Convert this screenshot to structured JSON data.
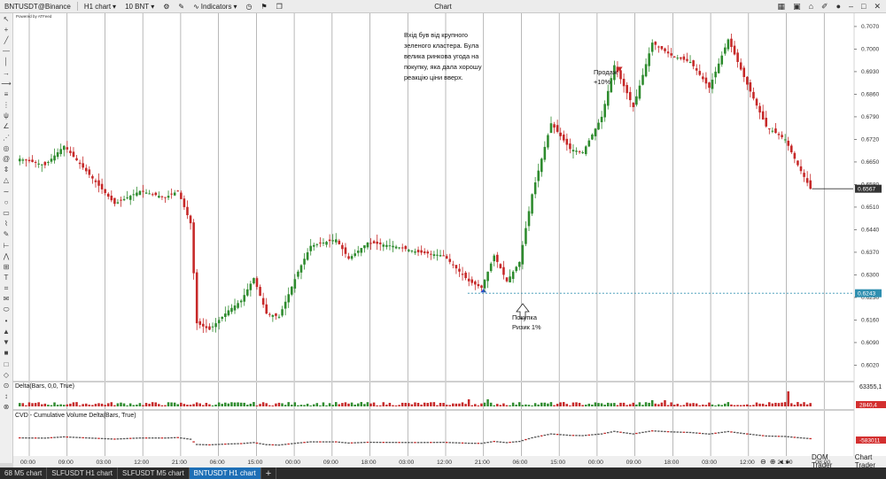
{
  "toolbar": {
    "symbol": "BNTUSDT@Binance",
    "timeframe": "H1 chart",
    "quantity": "10 BNT",
    "indicators": "Indicators",
    "window_title": "Chart",
    "powered": "Powered by ATFeed"
  },
  "annotations": {
    "note_lines": [
      "Вхід був від крупного",
      "зеленого кластера. Була",
      "велика ринкова угода на",
      "покупку, яка дала хорошу",
      "реакцію ціни вверх."
    ],
    "sell_lines": [
      "Продаж",
      "+10%"
    ],
    "buy_lines": [
      "Покупка",
      "Ризик 1%"
    ]
  },
  "panels": {
    "delta_title": "Delta(Bars, 0,0, True)",
    "delta_top_value": "63355,1",
    "delta_badge": "2840,4",
    "cvd_title": "CVD - Cumulative Volume Delta(Bars, True)",
    "cvd_badge": "-583011"
  },
  "bottom": {
    "dom_trader": "DOM Trader",
    "chart_trader": "Chart Trader"
  },
  "tabs": [
    "68 M5 chart",
    "SLFUSDT H1 chart",
    "SLFUSDT M5 chart",
    "BNTUSDT H1 chart"
  ],
  "colors": {
    "up": "#2e8b2e",
    "down": "#c62828",
    "entry_line": "#2f8fb0",
    "price_badge": "#333333",
    "down_badge": "#d32f2f"
  },
  "chart_data": {
    "type": "candlestick",
    "y_ticks": [
      "0.7070",
      "0.7000",
      "0.6930",
      "0.6860",
      "0.6790",
      "0.6720",
      "0.6650",
      "0.6580",
      "0.6510",
      "0.6440",
      "0.6370",
      "0.6300",
      "0.6230",
      "0.6160",
      "0.6090",
      "0.6020"
    ],
    "y_range": [
      0.598,
      0.71
    ],
    "x_ticks": [
      "00:00",
      "09:00",
      "03:00",
      "12:00",
      "21:00",
      "06:00",
      "15:00",
      "00:00",
      "09:00",
      "18:00",
      "03:00",
      "12:00",
      "21:00",
      "06:00",
      "15:00",
      "00:00",
      "09:00",
      "18:00",
      "03:00",
      "12:00",
      "21:00",
      "08:00"
    ],
    "current_price_label": "0.6567",
    "current_price": 0.6567,
    "entry_price_label": "0.6243",
    "entry_price": 0.6243,
    "anchors": [
      [
        0,
        0.666
      ],
      [
        8,
        0.664
      ],
      [
        14,
        0.67
      ],
      [
        22,
        0.661
      ],
      [
        30,
        0.652
      ],
      [
        38,
        0.656
      ],
      [
        46,
        0.654
      ],
      [
        50,
        0.656
      ],
      [
        54,
        0.646
      ],
      [
        56,
        0.615
      ],
      [
        60,
        0.613
      ],
      [
        66,
        0.619
      ],
      [
        70,
        0.622
      ],
      [
        74,
        0.629
      ],
      [
        78,
        0.618
      ],
      [
        82,
        0.617
      ],
      [
        88,
        0.631
      ],
      [
        92,
        0.639
      ],
      [
        100,
        0.641
      ],
      [
        104,
        0.635
      ],
      [
        110,
        0.64
      ],
      [
        118,
        0.639
      ],
      [
        126,
        0.637
      ],
      [
        134,
        0.636
      ],
      [
        142,
        0.628
      ],
      [
        146,
        0.626
      ],
      [
        150,
        0.636
      ],
      [
        154,
        0.628
      ],
      [
        158,
        0.634
      ],
      [
        162,
        0.655
      ],
      [
        168,
        0.677
      ],
      [
        174,
        0.669
      ],
      [
        178,
        0.668
      ],
      [
        184,
        0.679
      ],
      [
        188,
        0.695
      ],
      [
        194,
        0.682
      ],
      [
        200,
        0.702
      ],
      [
        206,
        0.698
      ],
      [
        212,
        0.696
      ],
      [
        218,
        0.688
      ],
      [
        224,
        0.703
      ],
      [
        230,
        0.689
      ],
      [
        236,
        0.676
      ],
      [
        242,
        0.672
      ],
      [
        246,
        0.664
      ],
      [
        250,
        0.6567
      ]
    ],
    "entry_bar_index": 146,
    "sell_bar_index": 189
  }
}
